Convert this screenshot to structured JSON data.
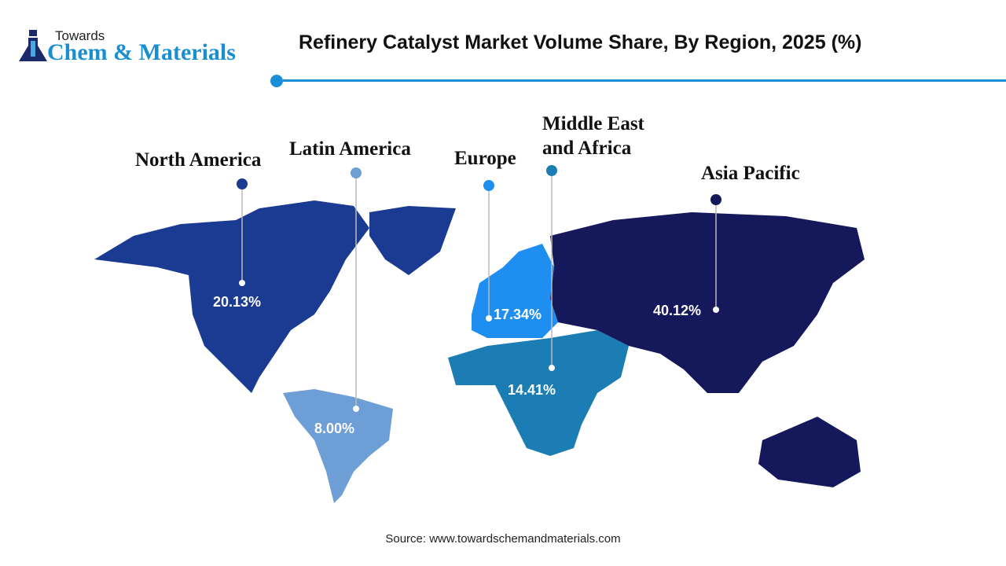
{
  "logo": {
    "line1": "Towards",
    "line2": "Chem & Materials"
  },
  "title": "Refinery Catalyst Market Volume Share, By Region, 2025 (%)",
  "regions": [
    {
      "name": "North America",
      "value": "20.13%",
      "color": "#1b3b93"
    },
    {
      "name": "Latin America",
      "value": "8.00%",
      "color": "#6d9ed6"
    },
    {
      "name": "Europe",
      "value": "17.34%",
      "color": "#1e8ff0"
    },
    {
      "name": "Middle East and Africa",
      "name_line1": "Middle East",
      "name_line2": "and Africa",
      "value": "14.41%",
      "color": "#1b7db3"
    },
    {
      "name": "Asia Pacific",
      "value": "40.12%",
      "color": "#15185a"
    }
  ],
  "source": "Source: www.towardschemandmaterials.com"
}
